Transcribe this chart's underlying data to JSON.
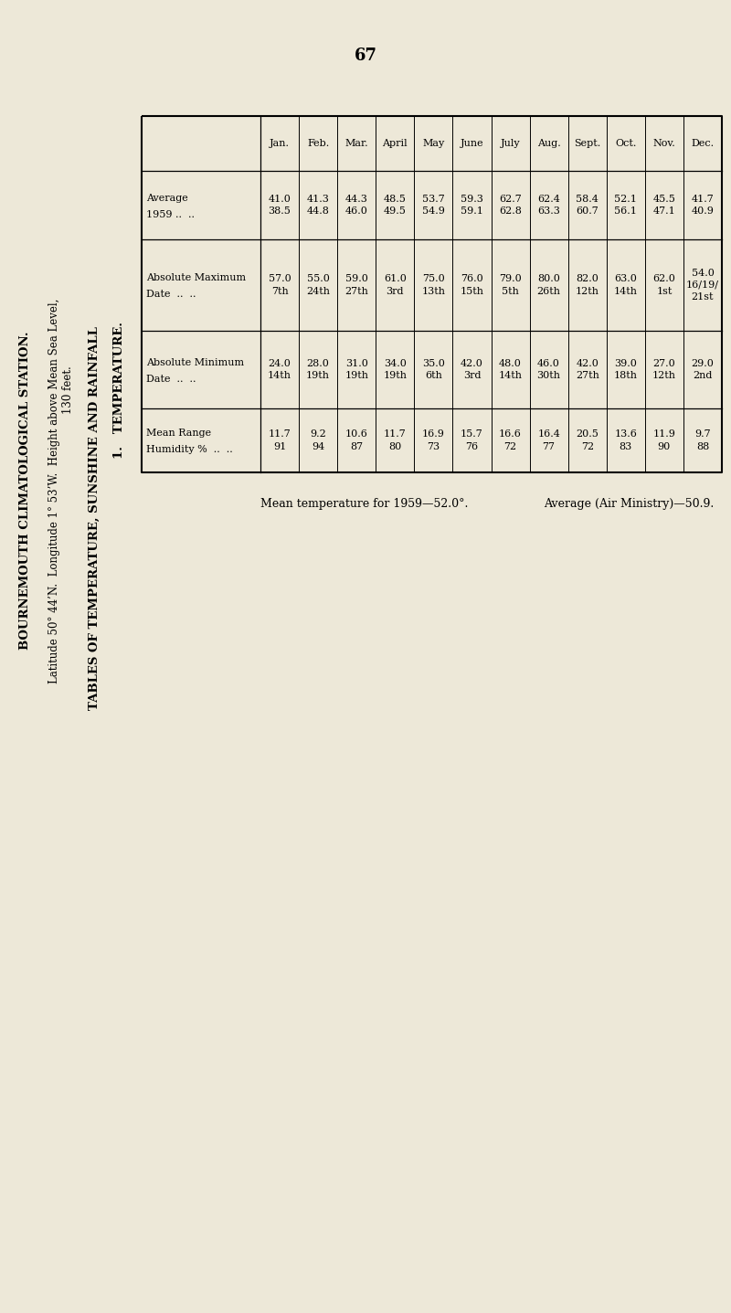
{
  "page_number": "67",
  "title_line1": "BOURNEMOUTH CLIMATOLOGICAL STATION.",
  "title_line2": "Latitude 50° 44’N.  Longitude 1° 53’W.  Height above Mean Sea Level,",
  "title_line3": "130 feet.",
  "section_title": "TABLES OF TEMPERATURE, SUNSHINE AND RAINFALL",
  "section_number": "1.",
  "section_name": "TEMPERATURE.",
  "bg_color": "#ede8d8",
  "months": [
    "Jan.",
    "Feb.",
    "Mar.",
    "April",
    "May",
    "June",
    "July",
    "Aug.",
    "Sept.",
    "Oct.",
    "Nov.",
    "Dec."
  ],
  "row_labels_col1": [
    "Average\n1959 ..",
    "Absolute Maximum\nDate ..",
    "Absolute Minimum\nDate ..",
    "Mean Range\nHumidity %"
  ],
  "row_labels_dots": [
    "..\n..",
    "..\n..",
    "..\n..",
    "..\n.."
  ],
  "table_data": [
    [
      "41.0\n38.5",
      "41.3\n44.8",
      "44.3\n46.0",
      "48.5\n49.5",
      "53.7\n54.9",
      "59.3\n59.1",
      "62.7\n62.8",
      "62.4\n63.3",
      "58.4\n60.7",
      "52.1\n56.1",
      "45.5\n47.1",
      "41.7\n40.9"
    ],
    [
      "57.0\n7th",
      "55.0\n24th",
      "59.0\n27th",
      "61.0\n3rd",
      "75.0\n13th",
      "76.0\n15th",
      "79.0\n5th",
      "80.0\n26th",
      "82.0\n12th",
      "63.0\n14th",
      "62.0\n1st",
      "54.0\n16/19/\n21st"
    ],
    [
      "24.0\n14th",
      "28.0\n19th",
      "31.0\n19th",
      "34.0\n19th",
      "35.0\n6th",
      "42.0\n3rd",
      "48.0\n14th",
      "46.0\n30th",
      "42.0\n27th",
      "39.0\n18th",
      "27.0\n12th",
      "29.0\n2nd"
    ],
    [
      "11.7\n91",
      "9.2\n94",
      "10.6\n87",
      "11.7\n80",
      "16.9\n73",
      "15.7\n76",
      "16.6\n72",
      "16.4\n77",
      "20.5\n72",
      "13.6\n83",
      "11.9\n90",
      "9.7\n88"
    ]
  ],
  "footer_line1": "Mean temperature for 1959—52.0°.",
  "footer_line2": "Average (Air Ministry)—50.9."
}
